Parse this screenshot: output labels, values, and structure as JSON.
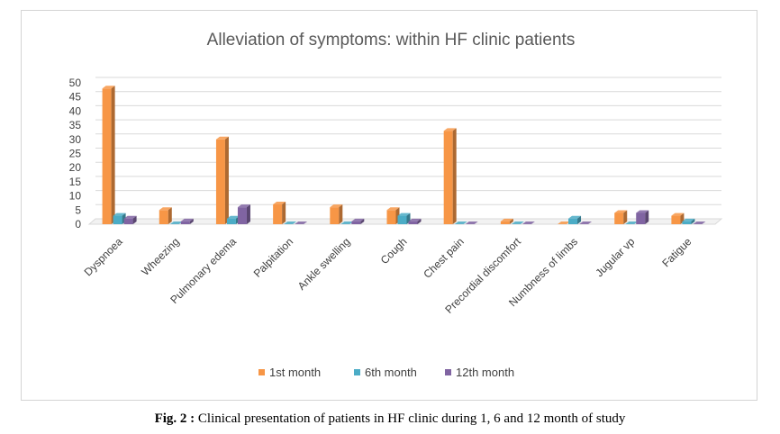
{
  "caption": {
    "label": "Fig. 2 :",
    "text": " Clinical presentation of patients in HF clinic during 1, 6 and 12 month of study"
  },
  "chart_data": {
    "type": "bar",
    "title": "Alleviation of symptoms: within HF clinic patients",
    "xlabel": "",
    "ylabel": "",
    "ylim": [
      0,
      50
    ],
    "yticks": [
      "0",
      "5",
      "10",
      "15",
      "20",
      "25",
      "30",
      "35",
      "40",
      "45",
      "50"
    ],
    "grid": true,
    "legend_position": "bottom",
    "categories": [
      "Dyspnoea",
      "Wheezing",
      "Pulmonary edema",
      "Palpitation",
      "Ankle swelling",
      "Cough",
      "Chest pain",
      "Precordial discomfort",
      "Numbness of limbs",
      "Jugular vp",
      "Fatigue"
    ],
    "series": [
      {
        "name": "1st month",
        "color": "#f79646",
        "values": [
          48,
          5,
          30,
          7,
          6,
          5,
          33,
          1,
          0,
          4,
          3
        ]
      },
      {
        "name": "6th month",
        "color": "#4bacc6",
        "values": [
          3,
          0,
          2,
          0,
          0,
          3,
          0,
          0,
          2,
          0,
          1
        ]
      },
      {
        "name": "12th month",
        "color": "#8064a2",
        "values": [
          2,
          1,
          6,
          0,
          1,
          1,
          0,
          0,
          0,
          4,
          0
        ]
      }
    ]
  }
}
